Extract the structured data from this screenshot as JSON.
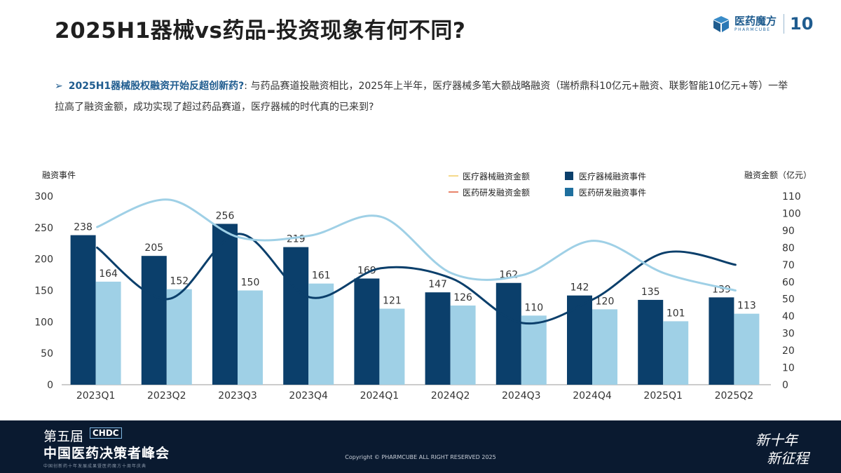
{
  "header": {
    "title": "2025H1器械vs药品-投资现象有何不同?",
    "logo_cn": "医药魔方",
    "logo_en": "PHARMCUBE",
    "logo_badge": "10"
  },
  "note": {
    "bullet": "➢",
    "highlight": "2025H1器械股权融资开始反超创新药?",
    "body": ": 与药品赛道投融资相比，2025年上半年，医疗器械多笔大额战略融资（瑞桥鼎科10亿元+融资、联影智能10亿元+等）一举拉高了融资金额，成功实现了超过药品赛道，医疗器械的时代真的已来到?"
  },
  "chart_data": {
    "type": "bar",
    "categories": [
      "2023Q1",
      "2023Q2",
      "2023Q3",
      "2023Q4",
      "2024Q1",
      "2024Q2",
      "2024Q3",
      "2024Q4",
      "2025Q1",
      "2025Q2"
    ],
    "left_axis_label": "融资事件",
    "right_axis_label": "融资金额（亿元）",
    "left_ticks": [
      "0",
      "50",
      "100",
      "150",
      "200",
      "250",
      "300"
    ],
    "right_ticks": [
      "0",
      "10",
      "20",
      "30",
      "40",
      "50",
      "60",
      "70",
      "80",
      "90",
      "100",
      "110"
    ],
    "ylim_left": [
      0,
      300
    ],
    "ylim_right": [
      0,
      110
    ],
    "legend": [
      {
        "name": "医疗器械融资金额",
        "kind": "line",
        "color": "#f5d98a"
      },
      {
        "name": "医疗器械融资事件",
        "kind": "bar",
        "color": "#0b3f6b"
      },
      {
        "name": "医药研发融资金额",
        "kind": "line",
        "color": "#e8846a"
      },
      {
        "name": "医药研发融资事件",
        "kind": "bar",
        "color": "#1f6f9e"
      }
    ],
    "bar_series": [
      {
        "name": "医疗器械融资事件",
        "color": "#0b3f6b",
        "values": [
          238,
          205,
          256,
          219,
          169,
          147,
          162,
          142,
          135,
          139
        ]
      },
      {
        "name": "医药研发融资事件",
        "color": "#9fd0e6",
        "values": [
          164,
          152,
          150,
          161,
          121,
          126,
          110,
          120,
          101,
          113
        ]
      }
    ],
    "line_series": [
      {
        "name": "医疗器械融资金额",
        "color": "#0b3f6b",
        "values": [
          80,
          50,
          88,
          51,
          68,
          62,
          36,
          50,
          77,
          70
        ]
      },
      {
        "name": "医药研发融资金额",
        "color": "#9fd0e6",
        "values": [
          92,
          108,
          86,
          87,
          98,
          65,
          64,
          84,
          65,
          55
        ]
      }
    ]
  },
  "footer": {
    "edition": "第五届",
    "brand": "CHDC",
    "summit": "中国医药决策者峰会",
    "tagline": "中国创新药十年发展成果暨医药魔方十周年庆典",
    "copyright": "Copyright © PHARMCUBE ALL RIGHT RESERVED 2025",
    "slogan1": "新十年",
    "slogan2": "新征程"
  }
}
